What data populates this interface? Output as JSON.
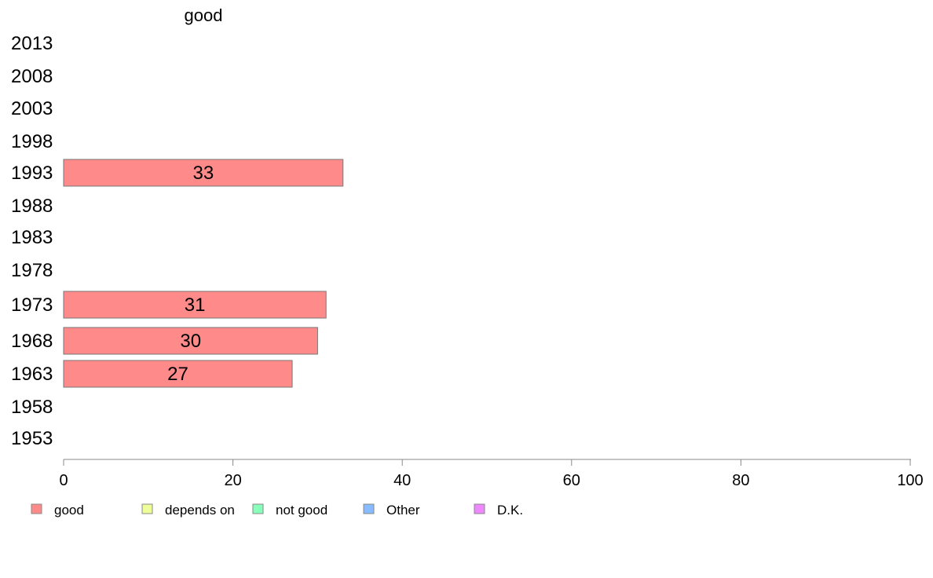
{
  "chart_data": {
    "type": "bar",
    "orientation": "horizontal",
    "stacked": true,
    "categories": [
      "2013",
      "2008",
      "2003",
      "1998",
      "1993",
      "1988",
      "1983",
      "1978",
      "1973",
      "1968",
      "1963",
      "1958",
      "1953"
    ],
    "series": [
      {
        "name": "good",
        "color": "#ff8a8a",
        "values": [
          null,
          null,
          null,
          null,
          33,
          null,
          null,
          null,
          31,
          30,
          27,
          null,
          null
        ]
      },
      {
        "name": "depends on",
        "color": "#eeff99",
        "values": [
          null,
          null,
          null,
          null,
          null,
          null,
          null,
          null,
          null,
          null,
          null,
          null,
          null
        ]
      },
      {
        "name": "not good",
        "color": "#88ffbb",
        "values": [
          null,
          null,
          null,
          null,
          null,
          null,
          null,
          null,
          null,
          null,
          null,
          null,
          null
        ]
      },
      {
        "name": "Other",
        "color": "#88bbff",
        "values": [
          null,
          null,
          null,
          null,
          null,
          null,
          null,
          null,
          null,
          null,
          null,
          null,
          null
        ]
      },
      {
        "name": "D.K.",
        "color": "#ee88ff",
        "values": [
          null,
          null,
          null,
          null,
          null,
          null,
          null,
          null,
          null,
          null,
          null,
          null,
          null
        ]
      }
    ],
    "column_header": "good",
    "xlim": [
      0,
      100
    ],
    "xticks": [
      0,
      20,
      40,
      60,
      80,
      100
    ],
    "grid": false,
    "legend_position": "bottom-left"
  }
}
